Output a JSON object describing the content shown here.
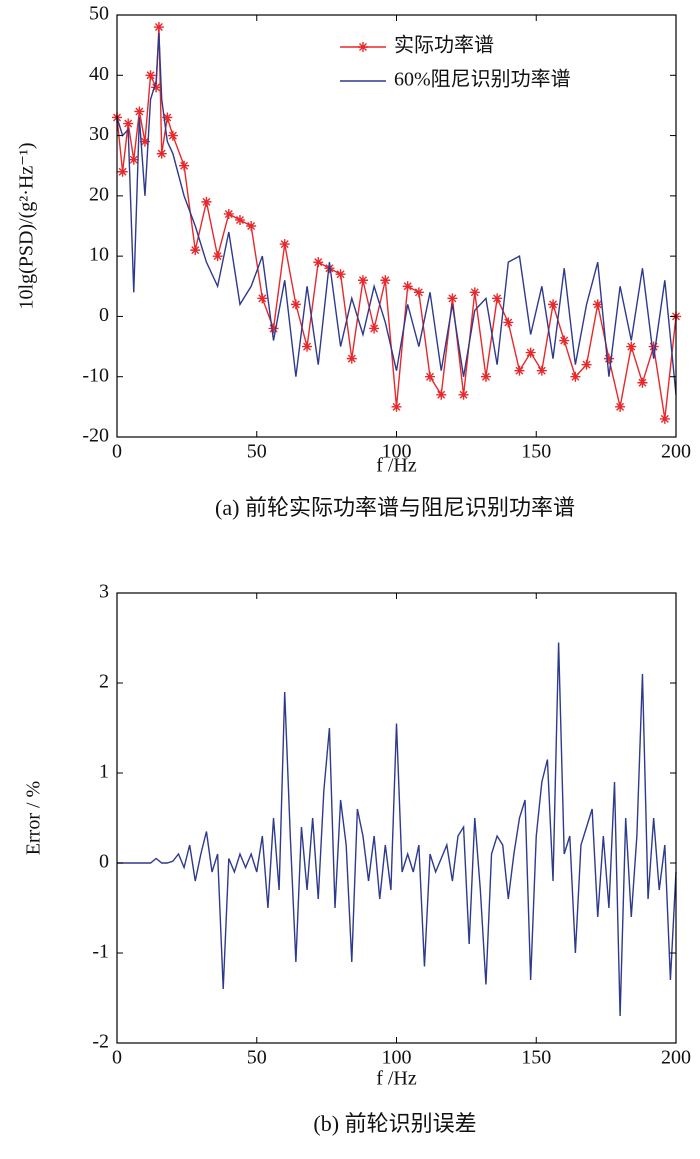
{
  "chart_data": [
    {
      "type": "line",
      "ylabel": "10lg(PSD)/(g²·Hz⁻¹)",
      "xlabel": "f /Hz",
      "caption": "(a) 前轮实际功率谱与阻尼识别功率谱",
      "xlim": [
        0,
        200
      ],
      "ylim": [
        -20,
        50
      ],
      "xticks": [
        0,
        50,
        100,
        150,
        200
      ],
      "yticks": [
        -20,
        -10,
        0,
        10,
        20,
        30,
        40,
        50
      ],
      "legend": "upper right",
      "x": [
        0,
        2,
        4,
        6,
        8,
        10,
        12,
        14,
        15,
        16,
        18,
        20,
        24,
        28,
        32,
        36,
        40,
        44,
        48,
        52,
        56,
        60,
        64,
        68,
        72,
        76,
        80,
        84,
        88,
        92,
        96,
        100,
        104,
        108,
        112,
        116,
        120,
        124,
        128,
        132,
        136,
        140,
        144,
        148,
        152,
        156,
        160,
        164,
        168,
        172,
        176,
        180,
        184,
        188,
        192,
        196,
        200
      ],
      "series": [
        {
          "name": "实际功率谱",
          "color": "#e8282b",
          "marker": "star",
          "values": [
            33,
            24,
            32,
            26,
            34,
            29,
            40,
            38,
            48,
            27,
            33,
            30,
            25,
            11,
            19,
            10,
            17,
            16,
            15,
            3,
            -2,
            12,
            2,
            -5,
            9,
            8,
            7,
            -7,
            6,
            -2,
            6,
            -15,
            5,
            4,
            -10,
            -13,
            3,
            -13,
            4,
            -10,
            3,
            -1,
            -9,
            -6,
            -9,
            2,
            -4,
            -10,
            -8,
            2,
            -7,
            -15,
            -5,
            -11,
            -5,
            -17,
            0
          ]
        },
        {
          "name": "60%阻尼识别功率谱",
          "color": "#2e3a8c",
          "values": [
            33,
            30,
            31,
            4,
            33,
            20,
            36,
            39,
            47,
            36,
            29,
            27,
            20,
            15,
            9,
            5,
            14,
            2,
            5,
            10,
            -4,
            6,
            -10,
            5,
            -8,
            9,
            -5,
            3,
            -3,
            5,
            -1,
            -9,
            2,
            -5,
            4,
            -9,
            2,
            -10,
            1,
            3,
            -8,
            9,
            10,
            -3,
            5,
            -7,
            8,
            -8,
            2,
            9,
            -10,
            5,
            -4,
            8,
            -7,
            6,
            -13
          ]
        }
      ]
    },
    {
      "type": "line",
      "ylabel": "Error / %",
      "xlabel": "f /Hz",
      "caption": "(b) 前轮识别误差",
      "xlim": [
        0,
        200
      ],
      "ylim": [
        -2,
        3
      ],
      "xticks": [
        0,
        50,
        100,
        150,
        200
      ],
      "yticks": [
        -2,
        -1,
        0,
        1,
        2,
        3
      ],
      "x": [
        0,
        2,
        4,
        6,
        8,
        10,
        12,
        14,
        16,
        18,
        20,
        22,
        24,
        26,
        28,
        30,
        32,
        34,
        36,
        38,
        40,
        42,
        44,
        46,
        48,
        50,
        52,
        54,
        56,
        58,
        60,
        62,
        64,
        66,
        68,
        70,
        72,
        74,
        76,
        78,
        80,
        82,
        84,
        86,
        88,
        90,
        92,
        94,
        96,
        98,
        100,
        102,
        104,
        106,
        108,
        110,
        112,
        114,
        116,
        118,
        120,
        122,
        124,
        126,
        128,
        130,
        132,
        134,
        136,
        138,
        140,
        142,
        144,
        146,
        148,
        150,
        152,
        154,
        156,
        158,
        160,
        162,
        164,
        166,
        168,
        170,
        172,
        174,
        176,
        178,
        180,
        182,
        184,
        186,
        188,
        190,
        192,
        194,
        196,
        198,
        200
      ],
      "series": [
        {
          "color": "#2e3a8c",
          "values": [
            0,
            0,
            0,
            0,
            0,
            0,
            0,
            0.05,
            0,
            0,
            0.02,
            0.1,
            -0.05,
            0.2,
            -0.2,
            0.1,
            0.35,
            -0.1,
            0.1,
            -1.4,
            0.05,
            -0.1,
            0.1,
            -0.05,
            0.1,
            -0.1,
            0.3,
            -0.5,
            0.5,
            -0.3,
            1.9,
            0.3,
            -1.1,
            0.4,
            -0.3,
            0.5,
            -0.4,
            0.8,
            1.5,
            -0.5,
            0.7,
            0.2,
            -1.1,
            0.6,
            0.3,
            -0.2,
            0.3,
            -0.4,
            0.2,
            -0.3,
            1.55,
            -0.1,
            0.1,
            -0.1,
            0.2,
            -1.15,
            0.1,
            -0.1,
            0.05,
            0.2,
            -0.2,
            0.3,
            0.4,
            -0.9,
            0.5,
            -0.3,
            -1.35,
            0.1,
            0.3,
            0.2,
            -0.4,
            0.1,
            0.5,
            0.7,
            -1.3,
            0.3,
            0.9,
            1.15,
            -0.2,
            2.45,
            0.1,
            0.3,
            -1.0,
            0.2,
            0.4,
            0.6,
            -0.6,
            0.3,
            -0.5,
            0.9,
            -1.7,
            0.5,
            -0.6,
            0.3,
            2.1,
            -0.4,
            0.5,
            -0.3,
            0.2,
            -1.3,
            -0.1
          ]
        }
      ]
    }
  ]
}
